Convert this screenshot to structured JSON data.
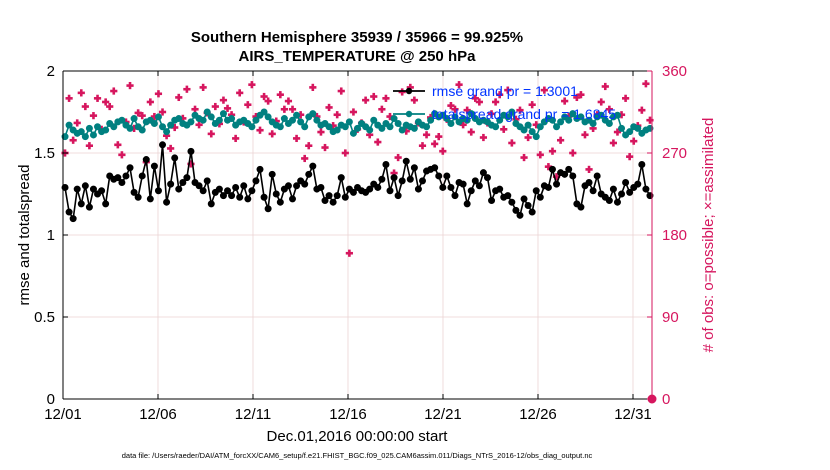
{
  "chart_data": {
    "type": "line",
    "title_line1": "Southern Hemisphere 35939 / 35966 = 99.925%",
    "title_line2": "AIRS_TEMPERATURE @ 250 hPa",
    "xlabel": "Dec.01,2016 00:00:00 start",
    "ylabel_left": "rmse and totalspread",
    "ylabel_right": "# of obs: o=possible; ×=assimilated",
    "footnote": "data file: /Users/raeder/DAI/ATM_forcXX/CAM6_setup/f.e21.FHIST_BGC.f09_025.CAM6assim.011/Diags_NTrS_2016-12/obs_diag_output.nc",
    "xlim": [
      0,
      31
    ],
    "ylim_left": [
      0,
      2
    ],
    "ylim_right": [
      0,
      360
    ],
    "x_ticks": [
      0,
      5,
      10,
      15,
      20,
      25,
      30
    ],
    "x_tick_labels": [
      "12/01",
      "12/06",
      "12/11",
      "12/16",
      "12/21",
      "12/26",
      "12/31"
    ],
    "y_left_ticks": [
      0,
      0.5,
      1,
      1.5,
      2
    ],
    "y_left_tick_labels": [
      "0",
      "0.5",
      "1",
      "1.5",
      "2"
    ],
    "y_right_ticks": [
      0,
      90,
      180,
      270,
      360
    ],
    "y_right_tick_labels": [
      "0",
      "90",
      "180",
      "270",
      "360"
    ],
    "colors": {
      "rmse": "#000000",
      "spread": "#008080",
      "obs": "#d6165e",
      "legend_text": "#0033ff",
      "grid": "#ebd3d3"
    },
    "legend": [
      {
        "name": "rmse",
        "label": "rmse grand pr = 1.3001"
      },
      {
        "name": "spread",
        "label": "totalspread grand pr = 1.6845"
      }
    ],
    "series": [
      {
        "name": "rmse",
        "values": [
          1.29,
          1.14,
          1.1,
          1.28,
          1.19,
          1.3,
          1.17,
          1.28,
          1.25,
          1.27,
          1.19,
          1.36,
          1.34,
          1.35,
          1.32,
          1.36,
          1.41,
          1.26,
          1.23,
          1.36,
          1.46,
          1.22,
          1.42,
          1.27,
          1.55,
          1.2,
          1.31,
          1.47,
          1.28,
          1.32,
          1.35,
          1.51,
          1.32,
          1.3,
          1.27,
          1.33,
          1.19,
          1.26,
          1.28,
          1.24,
          1.27,
          1.24,
          1.29,
          1.23,
          1.3,
          1.22,
          1.27,
          1.33,
          1.4,
          1.23,
          1.16,
          1.37,
          1.25,
          1.2,
          1.28,
          1.3,
          1.22,
          1.3,
          1.33,
          1.31,
          1.37,
          1.42,
          1.28,
          1.29,
          1.21,
          1.24,
          1.2,
          1.24,
          1.35,
          1.23,
          1.28,
          1.26,
          1.29,
          1.27,
          1.26,
          1.28,
          1.31,
          1.29,
          1.34,
          1.43,
          1.27,
          1.35,
          1.24,
          1.33,
          1.45,
          1.34,
          1.41,
          1.28,
          1.33,
          1.39,
          1.4,
          1.41,
          1.36,
          1.29,
          1.36,
          1.29,
          1.24,
          1.32,
          1.31,
          1.19,
          1.27,
          1.33,
          1.3,
          1.38,
          1.35,
          1.21,
          1.27,
          1.28,
          1.23,
          1.24,
          1.2,
          1.15,
          1.12,
          1.22,
          1.18,
          1.14,
          1.27,
          1.23,
          1.3,
          1.29,
          1.4,
          1.31,
          1.38,
          1.37,
          1.4,
          1.36,
          1.19,
          1.17,
          1.3,
          1.32,
          1.27,
          1.36,
          1.25,
          1.23,
          1.21,
          1.28,
          1.2,
          1.25,
          1.32,
          1.26,
          1.29,
          1.31,
          1.43,
          1.28,
          1.24
        ]
      },
      {
        "name": "spread",
        "values": [
          1.6,
          1.67,
          1.64,
          1.62,
          1.63,
          1.6,
          1.65,
          1.61,
          1.66,
          1.63,
          1.64,
          1.68,
          1.66,
          1.69,
          1.7,
          1.67,
          1.65,
          1.71,
          1.66,
          1.64,
          1.69,
          1.7,
          1.68,
          1.72,
          1.66,
          1.63,
          1.67,
          1.7,
          1.71,
          1.68,
          1.67,
          1.69,
          1.73,
          1.71,
          1.7,
          1.75,
          1.72,
          1.68,
          1.7,
          1.74,
          1.7,
          1.71,
          1.67,
          1.69,
          1.7,
          1.68,
          1.66,
          1.7,
          1.73,
          1.75,
          1.72,
          1.69,
          1.67,
          1.66,
          1.71,
          1.68,
          1.7,
          1.73,
          1.69,
          1.66,
          1.72,
          1.74,
          1.7,
          1.67,
          1.68,
          1.66,
          1.63,
          1.64,
          1.67,
          1.66,
          1.69,
          1.62,
          1.65,
          1.68,
          1.66,
          1.64,
          1.7,
          1.67,
          1.65,
          1.68,
          1.66,
          1.71,
          1.68,
          1.64,
          1.67,
          1.66,
          1.65,
          1.69,
          1.67,
          1.66,
          1.7,
          1.74,
          1.72,
          1.73,
          1.71,
          1.68,
          1.72,
          1.69,
          1.71,
          1.7,
          1.74,
          1.71,
          1.69,
          1.7,
          1.69,
          1.67,
          1.66,
          1.7,
          1.73,
          1.72,
          1.75,
          1.68,
          1.66,
          1.64,
          1.67,
          1.63,
          1.6,
          1.66,
          1.69,
          1.71,
          1.7,
          1.66,
          1.69,
          1.72,
          1.7,
          1.74,
          1.71,
          1.72,
          1.69,
          1.7,
          1.68,
          1.72,
          1.73,
          1.7,
          1.68,
          1.72,
          1.73,
          1.65,
          1.61,
          1.63,
          1.66,
          1.65,
          1.62,
          1.64,
          1.65
        ]
      },
      {
        "name": "obs_assimilated",
        "values": [
          270,
          330,
          284,
          303,
          336,
          321,
          278,
          311,
          330,
          296,
          326,
          321,
          338,
          279,
          268,
          304,
          344,
          297,
          314,
          311,
          260,
          326,
          310,
          335,
          315,
          289,
          275,
          298,
          331,
          308,
          340,
          258,
          318,
          301,
          342,
          314,
          291,
          321,
          302,
          328,
          319,
          312,
          286,
          336,
          304,
          323,
          345,
          310,
          295,
          332,
          327,
          291,
          305,
          334,
          318,
          327,
          318,
          286,
          312,
          264,
          278,
          342,
          310,
          293,
          276,
          320,
          300,
          312,
          338,
          270,
          160,
          315,
          296,
          303,
          328,
          290,
          332,
          282,
          318,
          330,
          310,
          248,
          265,
          337,
          294,
          342,
          328,
          303,
          278,
          290,
          309,
          280,
          288,
          272,
          307,
          322,
          318,
          345,
          301,
          317,
          293,
          330,
          326,
          287,
          303,
          313,
          326,
          334,
          296,
          339,
          281,
          307,
          317,
          265,
          287,
          323,
          301,
          268,
          339,
          255,
          272,
          244,
          284,
          327,
          310,
          270,
          331,
          334,
          290,
          252,
          297,
          312,
          326,
          343,
          318,
          281,
          293,
          312,
          330,
          266,
          283,
          300,
          317,
          346,
          306
        ]
      },
      {
        "name": "obs_possible",
        "values": [
          270,
          330,
          284,
          303,
          336,
          321,
          278,
          311,
          330,
          296,
          326,
          321,
          338,
          279,
          268,
          304,
          344,
          297,
          314,
          311,
          260,
          326,
          310,
          335,
          315,
          289,
          275,
          298,
          331,
          308,
          340,
          258,
          318,
          301,
          342,
          314,
          291,
          321,
          302,
          328,
          319,
          312,
          286,
          336,
          304,
          323,
          345,
          310,
          295,
          332,
          327,
          291,
          305,
          334,
          318,
          327,
          318,
          286,
          312,
          264,
          278,
          342,
          310,
          293,
          276,
          320,
          300,
          312,
          338,
          270,
          160,
          315,
          296,
          303,
          328,
          290,
          332,
          282,
          318,
          330,
          310,
          248,
          265,
          337,
          294,
          342,
          328,
          303,
          278,
          290,
          309,
          280,
          288,
          272,
          307,
          322,
          318,
          345,
          301,
          317,
          293,
          330,
          326,
          287,
          303,
          313,
          326,
          334,
          296,
          339,
          281,
          307,
          317,
          265,
          287,
          323,
          301,
          268,
          339,
          255,
          272,
          244,
          284,
          327,
          310,
          270,
          331,
          334,
          290,
          252,
          297,
          312,
          326,
          343,
          318,
          281,
          293,
          312,
          330,
          266,
          283,
          300,
          317,
          346,
          306
        ]
      }
    ],
    "final_point": {
      "x": 31,
      "obs_possible": 0,
      "obs_assimilated": 0
    }
  }
}
